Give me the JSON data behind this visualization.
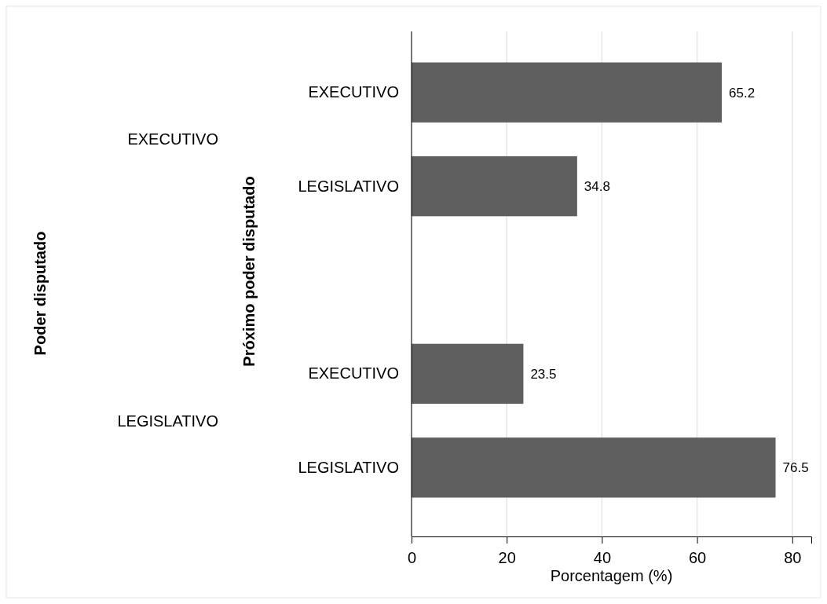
{
  "chart_data": {
    "type": "bar",
    "orientation": "horizontal",
    "categories": [
      "EXECUTIVO",
      "LEGISLATIVO",
      null,
      "EXECUTIVO",
      "LEGISLATIVO"
    ],
    "values": [
      65.2,
      34.8,
      null,
      23.5,
      76.5
    ],
    "color": "#5f5f5f",
    "xlim": [
      0,
      84
    ],
    "xticks": [
      0,
      20,
      40,
      60,
      80
    ],
    "grid": "x",
    "data_labels": true,
    "xlabel": "Porcentagem (%)",
    "ylabel": "Próximo poder disputado",
    "annotations": [
      "EXECUTIVO",
      "LEGISLATIVO",
      "Poder disputado"
    ]
  }
}
